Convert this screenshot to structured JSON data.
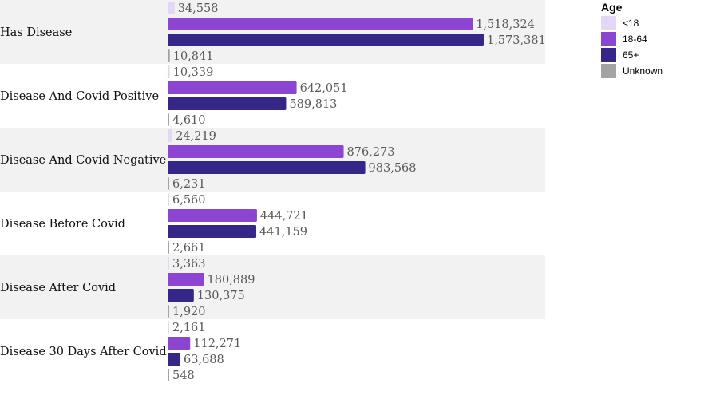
{
  "chart_data": {
    "type": "bar",
    "orientation": "horizontal",
    "categories": [
      "Has Disease",
      "Disease And Covid Positive",
      "Disease And Covid Negative",
      "Disease Before Covid",
      "Disease After Covid",
      "Disease 30 Days After Covid"
    ],
    "series": [
      {
        "name": "<18",
        "color": "#e4d7f5",
        "values": [
          34558,
          10339,
          24219,
          6560,
          3363,
          2161
        ]
      },
      {
        "name": "18-64",
        "color": "#8c45d0",
        "values": [
          1518324,
          642051,
          876273,
          444721,
          180889,
          112271
        ]
      },
      {
        "name": "65+",
        "color": "#352787",
        "values": [
          1573381,
          589813,
          983568,
          441159,
          130375,
          63688
        ]
      },
      {
        "name": "Unknown",
        "color": "#a3a3a3",
        "values": [
          10841,
          4610,
          6231,
          2661,
          1920,
          548
        ]
      }
    ],
    "value_labels": [
      [
        "34,558",
        "1,518,324",
        "1,573,381",
        "10,841"
      ],
      [
        "10,339",
        "642,051",
        "589,813",
        "4,610"
      ],
      [
        "24,219",
        "876,273",
        "983,568",
        "6,231"
      ],
      [
        "6,560",
        "444,721",
        "441,159",
        "2,661"
      ],
      [
        "3,363",
        "180,889",
        "130,375",
        "1,920"
      ],
      [
        "2,161",
        "112,271",
        "63,688",
        "548"
      ]
    ],
    "legend": {
      "title": "Age",
      "position": "top-right"
    },
    "band_colors": [
      "#f2f2f2",
      "#ffffff"
    ],
    "xlim": [
      0,
      1573381
    ]
  }
}
